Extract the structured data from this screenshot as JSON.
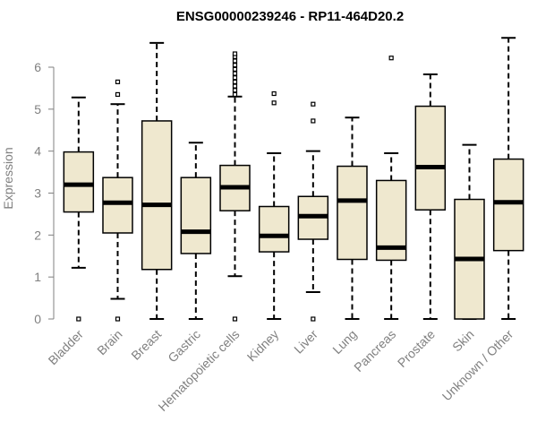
{
  "chart_data": {
    "type": "boxplot",
    "title": "ENSG00000239246 - RP11-464D20.2",
    "xlabel": "",
    "ylabel": "Expression",
    "ylim": [
      0,
      6.8
    ],
    "yticks": [
      0,
      1,
      2,
      3,
      4,
      5,
      6
    ],
    "colors": {
      "box_fill": "#efe8cf",
      "stroke": "#000000",
      "axis": "#808080"
    },
    "categories": [
      "Bladder",
      "Brain",
      "Breast",
      "Gastric",
      "Hematopoietic cells",
      "Kidney",
      "Liver",
      "Lung",
      "Pancreas",
      "Prostate",
      "Skin",
      "Unknown / Other"
    ],
    "boxes": [
      {
        "name": "Bladder",
        "whisker_low": 1.22,
        "q1": 2.55,
        "median": 3.2,
        "q3": 3.98,
        "whisker_high": 5.28,
        "outliers": [
          0.0
        ]
      },
      {
        "name": "Brain",
        "whisker_low": 0.48,
        "q1": 2.05,
        "median": 2.77,
        "q3": 3.37,
        "whisker_high": 5.12,
        "outliers": [
          5.35,
          5.65,
          0.0
        ]
      },
      {
        "name": "Breast",
        "whisker_low": 0.0,
        "q1": 1.18,
        "median": 2.72,
        "q3": 4.72,
        "whisker_high": 6.58,
        "outliers": []
      },
      {
        "name": "Gastric",
        "whisker_low": 0.0,
        "q1": 1.56,
        "median": 2.08,
        "q3": 3.37,
        "whisker_high": 4.2,
        "outliers": []
      },
      {
        "name": "Hematopoietic cells",
        "whisker_low": 1.02,
        "q1": 2.58,
        "median": 3.14,
        "q3": 3.66,
        "whisker_high": 5.3,
        "outliers": [
          5.35,
          5.45,
          5.55,
          5.65,
          5.75,
          5.85,
          5.95,
          6.05,
          6.15,
          6.25,
          6.32,
          0.0
        ]
      },
      {
        "name": "Kidney",
        "whisker_low": 0.0,
        "q1": 1.6,
        "median": 1.98,
        "q3": 2.68,
        "whisker_high": 3.95,
        "outliers": [
          5.15,
          5.37
        ]
      },
      {
        "name": "Liver",
        "whisker_low": 0.64,
        "q1": 1.9,
        "median": 2.45,
        "q3": 2.92,
        "whisker_high": 4.0,
        "outliers": [
          4.72,
          5.12,
          0.0
        ]
      },
      {
        "name": "Lung",
        "whisker_low": 0.0,
        "q1": 1.42,
        "median": 2.82,
        "q3": 3.64,
        "whisker_high": 4.8,
        "outliers": []
      },
      {
        "name": "Pancreas",
        "whisker_low": 0.0,
        "q1": 1.4,
        "median": 1.7,
        "q3": 3.3,
        "whisker_high": 3.95,
        "outliers": [
          6.22
        ]
      },
      {
        "name": "Prostate",
        "whisker_low": 0.0,
        "q1": 2.6,
        "median": 3.62,
        "q3": 5.07,
        "whisker_high": 5.83,
        "outliers": []
      },
      {
        "name": "Skin",
        "whisker_low": 0.0,
        "q1": 0.0,
        "median": 1.43,
        "q3": 2.85,
        "whisker_high": 4.15,
        "outliers": []
      },
      {
        "name": "Unknown / Other",
        "whisker_low": 0.0,
        "q1": 1.63,
        "median": 2.78,
        "q3": 3.81,
        "whisker_high": 6.7,
        "outliers": []
      }
    ]
  }
}
